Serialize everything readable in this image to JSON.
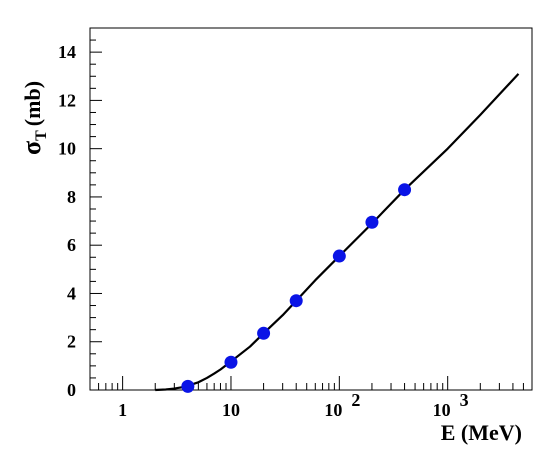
{
  "chart_data": {
    "type": "line",
    "x_scale": "log",
    "xlim": [
      0.5,
      6000
    ],
    "ylim": [
      0,
      15
    ],
    "grid": false,
    "xlabel": "E (MeV)",
    "ylabel_main": "σ",
    "ylabel_sub": "T",
    "ylabel_unit": "(mb)",
    "x_ticks": [
      {
        "value": 1,
        "base": "1",
        "exp": ""
      },
      {
        "value": 10,
        "base": "10",
        "exp": ""
      },
      {
        "value": 100,
        "base": "10",
        "exp": "2"
      },
      {
        "value": 1000,
        "base": "10",
        "exp": "3"
      }
    ],
    "y_ticks": [
      0,
      2,
      4,
      6,
      8,
      10,
      12,
      14
    ],
    "series": [
      {
        "kind": "line",
        "color": "#000000",
        "x": [
          2.0,
          2.5,
          3.0,
          3.5,
          4.0,
          5.0,
          6.0,
          7.0,
          8.0,
          10.0,
          15.0,
          20.0,
          30.0,
          40.0,
          60.0,
          100.0,
          200.0,
          400.0,
          1000.0,
          2000.0,
          4500.0
        ],
        "y": [
          0.0,
          0.02,
          0.06,
          0.11,
          0.18,
          0.32,
          0.5,
          0.68,
          0.85,
          1.18,
          1.8,
          2.35,
          3.1,
          3.7,
          4.55,
          5.55,
          6.9,
          8.3,
          10.0,
          11.4,
          13.1
        ]
      },
      {
        "kind": "scatter",
        "color": "#0a14e6",
        "x": [
          4,
          10,
          20,
          40,
          100,
          200,
          400
        ],
        "y": [
          0.15,
          1.15,
          2.35,
          3.7,
          5.55,
          6.95,
          8.3
        ]
      }
    ]
  }
}
